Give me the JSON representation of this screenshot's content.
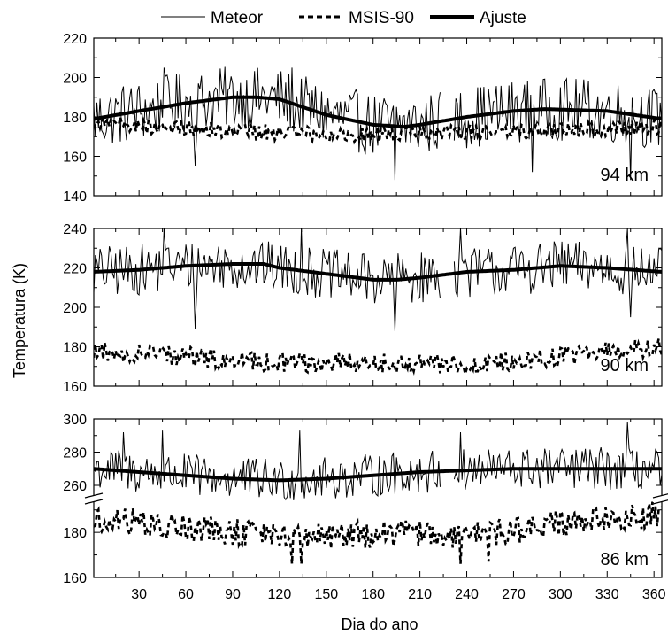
{
  "chart_data": {
    "type": "line",
    "xlabel": "Dia do ano",
    "ylabel": "Temperatura (K)",
    "x_ticks": [
      30,
      60,
      90,
      120,
      150,
      180,
      210,
      240,
      270,
      300,
      330,
      360
    ],
    "xlim": [
      1,
      365
    ],
    "legend": {
      "placement": "top-center",
      "entries": [
        {
          "name": "Meteor",
          "style": "thin-solid"
        },
        {
          "name": "MSIS-90",
          "style": "dashed"
        },
        {
          "name": "Ajuste",
          "style": "thick-solid"
        }
      ]
    },
    "panels": [
      {
        "label": "94 km",
        "ylim": [
          140,
          220
        ],
        "y_ticks": [
          140,
          160,
          180,
          200,
          220
        ],
        "meteor": {
          "mean_curve": [
            [
              1,
              179
            ],
            [
              30,
              183
            ],
            [
              60,
              187
            ],
            [
              90,
              190
            ],
            [
              120,
              189
            ],
            [
              150,
              181
            ],
            [
              180,
              176
            ],
            [
              210,
              176
            ],
            [
              240,
              180
            ],
            [
              270,
              183
            ],
            [
              300,
              184
            ],
            [
              330,
              183
            ],
            [
              365,
              179
            ]
          ],
          "spread": 16,
          "gaps": [
            [
              224,
              231
            ]
          ],
          "spikes": [
            [
              46,
              205
            ],
            [
              66,
              155
            ],
            [
              128,
              205
            ],
            [
              194,
              148
            ],
            [
              282,
              152
            ],
            [
              345,
              148
            ]
          ]
        },
        "msis": {
          "mean_curve": [
            [
              1,
              177
            ],
            [
              60,
              174
            ],
            [
              120,
              172
            ],
            [
              180,
              171
            ],
            [
              240,
              172
            ],
            [
              300,
              173
            ],
            [
              365,
              175
            ]
          ],
          "spread": 4
        },
        "fit": [
          [
            1,
            179
          ],
          [
            30,
            183
          ],
          [
            60,
            187
          ],
          [
            90,
            190
          ],
          [
            105,
            190
          ],
          [
            120,
            189
          ],
          [
            150,
            181
          ],
          [
            180,
            176
          ],
          [
            200,
            175
          ],
          [
            210,
            176
          ],
          [
            240,
            180
          ],
          [
            270,
            183
          ],
          [
            290,
            184
          ],
          [
            330,
            183
          ],
          [
            365,
            179
          ]
        ]
      },
      {
        "label": "90 km",
        "ylim": [
          160,
          240
        ],
        "y_ticks": [
          160,
          180,
          200,
          220,
          240
        ],
        "meteor": {
          "mean_curve": [
            [
              1,
              218
            ],
            [
              30,
              219
            ],
            [
              60,
              221
            ],
            [
              90,
              222
            ],
            [
              120,
              220
            ],
            [
              150,
              217
            ],
            [
              180,
              214
            ],
            [
              210,
              215
            ],
            [
              240,
              218
            ],
            [
              270,
              219
            ],
            [
              300,
              221
            ],
            [
              330,
              220
            ],
            [
              365,
              218
            ]
          ],
          "spread": 13,
          "gaps": [
            [
              224,
              231
            ]
          ],
          "spikes": [
            [
              46,
              240
            ],
            [
              66,
              189
            ],
            [
              134,
              240
            ],
            [
              194,
              188
            ],
            [
              236,
              240
            ],
            [
              343,
              240
            ],
            [
              345,
              195
            ]
          ]
        },
        "msis": {
          "mean_curve": [
            [
              1,
              178
            ],
            [
              60,
              175
            ],
            [
              120,
              172
            ],
            [
              180,
              172
            ],
            [
              240,
              171
            ],
            [
              300,
              175
            ],
            [
              365,
              180
            ]
          ],
          "spread": 5
        },
        "fit": [
          [
            1,
            218
          ],
          [
            30,
            219
          ],
          [
            60,
            221
          ],
          [
            90,
            222
          ],
          [
            110,
            222
          ],
          [
            120,
            220
          ],
          [
            150,
            217
          ],
          [
            180,
            214
          ],
          [
            195,
            214
          ],
          [
            210,
            215
          ],
          [
            240,
            218
          ],
          [
            270,
            219
          ],
          [
            300,
            221
          ],
          [
            330,
            220
          ],
          [
            365,
            218
          ]
        ]
      },
      {
        "label": "86 km",
        "segments": [
          {
            "ylim": [
              252,
              300
            ],
            "y_ticks": [
              260,
              280,
              300
            ]
          },
          {
            "ylim": [
              160,
              195
            ],
            "y_ticks": [
              160,
              180
            ]
          }
        ],
        "axis_break": true,
        "meteor": {
          "mean_curve": [
            [
              1,
              270
            ],
            [
              30,
              268
            ],
            [
              60,
              266
            ],
            [
              90,
              264
            ],
            [
              120,
              263
            ],
            [
              150,
              264
            ],
            [
              180,
              266
            ],
            [
              210,
              268
            ],
            [
              240,
              269
            ],
            [
              270,
              270
            ],
            [
              300,
              270
            ],
            [
              330,
              270
            ],
            [
              365,
              269
            ]
          ],
          "spread": 13,
          "gaps": [
            [
              224,
              231
            ]
          ],
          "spikes": [
            [
              20,
              292
            ],
            [
              45,
              293
            ],
            [
              133,
              293
            ],
            [
              236,
              292
            ],
            [
              343,
              298
            ]
          ]
        },
        "msis": {
          "mean_curve": [
            [
              1,
              184
            ],
            [
              30,
              185
            ],
            [
              60,
              182
            ],
            [
              90,
              180
            ],
            [
              120,
              179
            ],
            [
              150,
              178
            ],
            [
              180,
              179
            ],
            [
              210,
              180
            ],
            [
              240,
              178
            ],
            [
              270,
              181
            ],
            [
              300,
              184
            ],
            [
              330,
              186
            ],
            [
              365,
              188
            ]
          ],
          "spread": 6,
          "spikes": [
            [
              128,
              166
            ],
            [
              134,
              166
            ],
            [
              236,
              166
            ],
            [
              254,
              167
            ]
          ]
        },
        "fit": [
          [
            1,
            270
          ],
          [
            30,
            268
          ],
          [
            60,
            266
          ],
          [
            90,
            264
          ],
          [
            120,
            263
          ],
          [
            150,
            264
          ],
          [
            180,
            266
          ],
          [
            210,
            268
          ],
          [
            240,
            269
          ],
          [
            270,
            270
          ],
          [
            300,
            270
          ],
          [
            330,
            270
          ],
          [
            365,
            270
          ]
        ]
      }
    ]
  }
}
